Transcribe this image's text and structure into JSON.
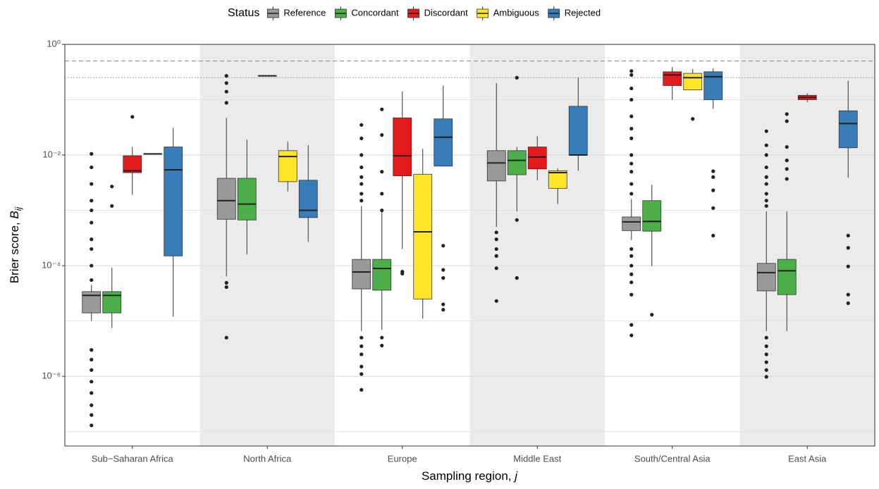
{
  "chart_data": {
    "type": "boxplot",
    "legend_title": "Status",
    "ylabel": {
      "text": "Brier score, ",
      "symbol": "B",
      "subscript": "ij"
    },
    "xlabel": {
      "text": "Sampling region, ",
      "symbol": "j"
    },
    "log_y": true,
    "ylim": [
      5.5e-08,
      1
    ],
    "yticks": [
      {
        "value": 1,
        "label": "10⁰"
      },
      {
        "value": 0.01,
        "label": "10⁻²"
      },
      {
        "value": 0.0001,
        "label": "10⁻⁴"
      },
      {
        "value": 1e-06,
        "label": "10⁻⁶"
      }
    ],
    "minor_yticks": [
      0.1,
      0.001,
      1e-05,
      1e-07
    ],
    "grid": true,
    "shade_alternate": true,
    "hlines": [
      {
        "value": 0.5,
        "style": "dashed"
      },
      {
        "value": 0.25,
        "style": "dotted"
      }
    ],
    "legend_position": "top",
    "categories": [
      "Sub−Saharan Africa",
      "North Africa",
      "Europe",
      "Middle East",
      "South/Central Asia",
      "East Asia"
    ],
    "series": [
      {
        "name": "Reference",
        "color": "#999999",
        "boxes": [
          {
            "q1": 1.4e-05,
            "median": 2.9e-05,
            "q3": 3.4e-05,
            "low": 1e-05,
            "high": 4.5e-05,
            "outliers": [
              0.0105,
              0.006,
              0.003,
              0.0015,
              0.001,
              0.0006,
              0.0003,
              0.0002,
              0.0001,
              5.5e-05,
              3e-06,
              2e-06,
              1.3e-06,
              8e-07,
              5e-07,
              3e-07,
              2e-07,
              1.3e-07
            ]
          },
          {
            "q1": 0.00069,
            "median": 0.0015,
            "q3": 0.0038,
            "low": 6.4e-05,
            "high": 0.047,
            "outliers": [
              0.27,
              0.2,
              0.14,
              0.088,
              4.9e-05,
              4.1e-05,
              5e-06
            ]
          },
          {
            "q1": 3.8e-05,
            "median": 7.7e-05,
            "q3": 0.00013,
            "low": 6.6e-06,
            "high": 0.0012,
            "outliers": [
              0.035,
              0.02,
              0.01,
              0.006,
              0.004,
              0.003,
              0.002,
              0.0015,
              5e-06,
              3.5e-06,
              2.5e-06,
              1.5e-06,
              1.1e-06,
              5.7e-07
            ]
          },
          {
            "q1": 0.0034,
            "median": 0.0072,
            "q3": 0.012,
            "low": 0.0005,
            "high": 0.2,
            "outliers": [
              0.0004,
              0.0003,
              0.0002,
              0.00015,
              9e-05,
              2.3e-05
            ]
          },
          {
            "q1": 0.00043,
            "median": 0.00062,
            "q3": 0.00076,
            "low": 0.00029,
            "high": 0.0016,
            "outliers": [
              0.33,
              0.28,
              0.16,
              0.1,
              0.05,
              0.03,
              0.02,
              0.01,
              0.007,
              0.005,
              0.003,
              0.002,
              0.0002,
              0.00015,
              0.0001,
              7e-05,
              5e-05,
              3e-05,
              8.5e-06,
              5.5e-06
            ]
          },
          {
            "q1": 3.5e-05,
            "median": 7.5e-05,
            "q3": 0.00011,
            "low": 6.6e-06,
            "high": 0.00096,
            "outliers": [
              0.027,
              0.015,
              0.01,
              0.006,
              0.004,
              0.003,
              0.002,
              0.0015,
              0.0012,
              5e-06,
              3.5e-06,
              2.5e-06,
              1.8e-06,
              1.3e-06,
              9.8e-07
            ]
          }
        ]
      },
      {
        "name": "Concordant",
        "color": "#4daf4a",
        "boxes": [
          {
            "q1": 1.4e-05,
            "median": 2.9e-05,
            "q3": 3.4e-05,
            "low": 7.5e-06,
            "high": 9.2e-05,
            "outliers": [
              0.0027,
              0.0012
            ]
          },
          {
            "q1": 0.00067,
            "median": 0.0013,
            "q3": 0.0038,
            "low": 0.00016,
            "high": 0.019,
            "outliers": []
          },
          {
            "q1": 3.6e-05,
            "median": 8.9e-05,
            "q3": 0.00013,
            "low": 6.9e-06,
            "high": 0.00096,
            "outliers": [
              0.067,
              0.023,
              0.005,
              0.002,
              0.001,
              5e-06,
              3.6e-06
            ]
          },
          {
            "q1": 0.0044,
            "median": 0.008,
            "q3": 0.012,
            "low": 0.00096,
            "high": 0.014,
            "outliers": [
              0.25,
              0.00067,
              6e-05
            ]
          },
          {
            "q1": 0.00042,
            "median": 0.00063,
            "q3": 0.0015,
            "low": 9.8e-05,
            "high": 0.0029,
            "outliers": [
              1.3e-05
            ]
          },
          {
            "q1": 3e-05,
            "median": 8.1e-05,
            "q3": 0.00013,
            "low": 6.6e-06,
            "high": 0.00096,
            "outliers": [
              0.055,
              0.041,
              0.014,
              0.008,
              0.0056,
              0.0037
            ]
          }
        ]
      },
      {
        "name": "Discordant",
        "color": "#e41a1c",
        "boxes": [
          {
            "q1": 0.0048,
            "median": 0.0052,
            "q3": 0.0097,
            "low": 0.0019,
            "high": 0.014,
            "outliers": [
              0.049
            ]
          },
          {
            "q1": 0.27,
            "median": 0.27,
            "q3": 0.27,
            "low": 0.27,
            "high": 0.27,
            "outliers": []
          },
          {
            "q1": 0.0042,
            "median": 0.0097,
            "q3": 0.047,
            "low": 0.0002,
            "high": 0.14,
            "outliers": [
              7.8e-05,
              7.2e-05
            ]
          },
          {
            "q1": 0.0056,
            "median": 0.0092,
            "q3": 0.014,
            "low": 0.0035,
            "high": 0.022,
            "outliers": []
          },
          {
            "q1": 0.18,
            "median": 0.28,
            "q3": 0.32,
            "low": 0.1,
            "high": 0.39,
            "outliers": []
          },
          {
            "q1": 0.1,
            "median": 0.11,
            "q3": 0.12,
            "low": 0.09,
            "high": 0.13,
            "outliers": []
          }
        ]
      },
      {
        "name": "Ambiguous",
        "color": "#ffe528",
        "boxes": [
          {
            "q1": 0.0105,
            "median": 0.0105,
            "q3": 0.0105,
            "low": 0.0105,
            "high": 0.0105,
            "outliers": []
          },
          {
            "q1": 0.0033,
            "median": 0.0094,
            "q3": 0.012,
            "low": 0.0022,
            "high": 0.0175,
            "outliers": []
          },
          {
            "q1": 2.5e-05,
            "median": 0.00041,
            "q3": 0.0045,
            "low": 1.1e-05,
            "high": 0.013,
            "outliers": []
          },
          {
            "q1": 0.0025,
            "median": 0.0048,
            "q3": 0.0052,
            "low": 0.0013,
            "high": 0.0057,
            "outliers": []
          },
          {
            "q1": 0.15,
            "median": 0.25,
            "q3": 0.3,
            "low": 0.15,
            "high": 0.36,
            "outliers": [
              0.045
            ]
          },
          null
        ]
      },
      {
        "name": "Rejected",
        "color": "#377eb8",
        "boxes": [
          {
            "q1": 0.00015,
            "median": 0.0054,
            "q3": 0.014,
            "low": 1.2e-05,
            "high": 0.031,
            "outliers": []
          },
          {
            "q1": 0.00074,
            "median": 0.001,
            "q3": 0.0035,
            "low": 0.00027,
            "high": 0.015,
            "outliers": []
          },
          {
            "q1": 0.0063,
            "median": 0.021,
            "q3": 0.045,
            "low": 0.0063,
            "high": 0.18,
            "outliers": [
              0.00023,
              8.4e-05,
              6e-05,
              2e-05,
              1.6e-05
            ]
          },
          {
            "q1": 0.0099,
            "median": 0.01,
            "q3": 0.076,
            "low": 0.0052,
            "high": 0.25,
            "outliers": []
          },
          {
            "q1": 0.1,
            "median": 0.26,
            "q3": 0.32,
            "low": 0.069,
            "high": 0.37,
            "outliers": [
              0.0051,
              0.004,
              0.0023,
              0.0011,
              0.00035
            ]
          },
          {
            "q1": 0.0135,
            "median": 0.037,
            "q3": 0.063,
            "low": 0.0039,
            "high": 0.22,
            "outliers": [
              0.00035,
              0.00021,
              9.7e-05,
              3e-05,
              2.1e-05
            ]
          }
        ]
      }
    ]
  }
}
